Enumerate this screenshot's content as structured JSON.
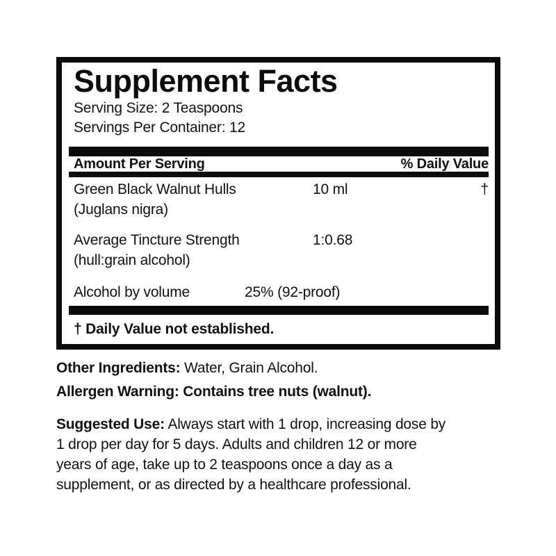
{
  "colors": {
    "text": "#111111",
    "rule_and_border": "#0c0c0c",
    "background": "#ffffff"
  },
  "panel": {
    "title": "Supplement Facts",
    "serving_size": "Serving Size: 2 Teaspoons",
    "servings_per_container": "Servings Per Container: 12",
    "column_headers": {
      "left": "Amount Per Serving",
      "right": "% Daily Value"
    },
    "rows": [
      {
        "name": "Green Black Walnut Hulls",
        "name_line2": "(Juglans nigra)",
        "amount": "10 ml",
        "daily_value": "†"
      },
      {
        "name": "Average Tincture Strength",
        "name_line2": "(hull:grain alcohol)",
        "amount": "1:0.68",
        "daily_value": ""
      },
      {
        "name": "Alcohol by volume",
        "name_line2": "",
        "amount": "25% (92-proof)",
        "daily_value": ""
      }
    ],
    "footnote": "† Daily Value not established."
  },
  "other_ingredients": {
    "label": "Other Ingredients:",
    "text": " Water, Grain Alcohol."
  },
  "allergen_warning": {
    "label": "Allergen Warning:",
    "text": " Contains tree nuts (walnut)."
  },
  "suggested_use": {
    "label": "Suggested Use:",
    "lines": [
      " Always start with 1 drop, increasing dose by",
      "1 drop per day for 5 days. Adults and children 12 or more",
      "years of age, take up to 2 teaspoons once a day as a",
      "supplement, or as directed by a healthcare professional."
    ]
  }
}
